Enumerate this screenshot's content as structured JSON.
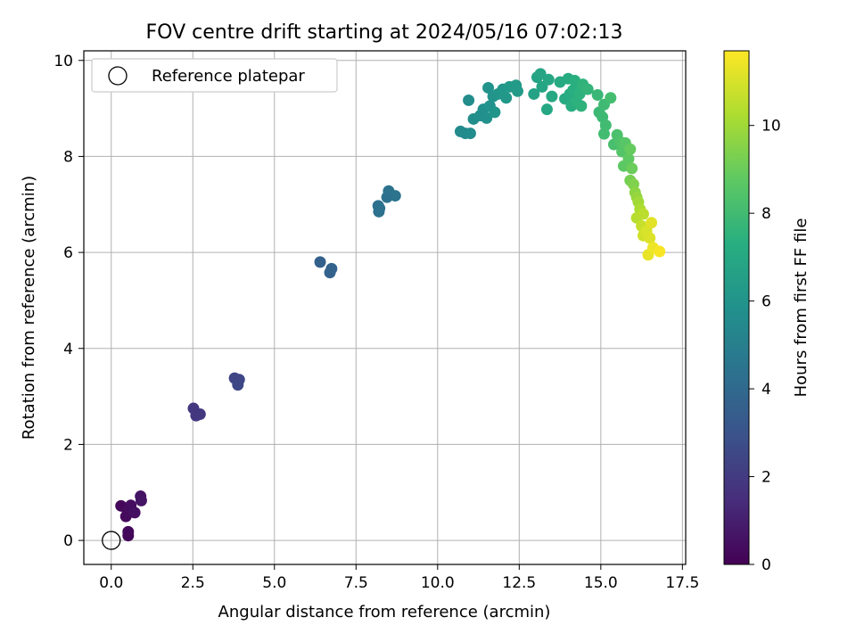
{
  "chart_data": {
    "type": "scatter",
    "title": "FOV centre drift starting at 2024/05/16 07:02:13",
    "xlabel": "Angular distance from reference (arcmin)",
    "ylabel": "Rotation from reference (arcmin)",
    "xlim": [
      -0.84,
      17.6
    ],
    "ylim": [
      -0.5,
      10.2
    ],
    "xticks": [
      0.0,
      2.5,
      5.0,
      7.5,
      10.0,
      12.5,
      15.0,
      17.5
    ],
    "xtick_labels": [
      "0.0",
      "2.5",
      "5.0",
      "7.5",
      "10.0",
      "12.5",
      "15.0",
      "17.5"
    ],
    "yticks": [
      0,
      2,
      4,
      6,
      8,
      10
    ],
    "ytick_labels": [
      "0",
      "2",
      "4",
      "6",
      "8",
      "10"
    ],
    "grid": true,
    "colormap": "viridis",
    "colorbar": {
      "label": "Hours from first FF file",
      "range": [
        0,
        11.7
      ],
      "ticks": [
        0,
        2,
        4,
        6,
        8,
        10
      ],
      "tick_labels": [
        "0",
        "2",
        "4",
        "6",
        "8",
        "10"
      ]
    },
    "legend": {
      "placement": "upper-left",
      "entries": [
        {
          "label": "Reference platepar",
          "marker": "open-circle"
        }
      ]
    },
    "reference_point": {
      "x": 0.0,
      "y": 0.0,
      "color": "#000000"
    },
    "points": [
      {
        "x": 0.3,
        "y": 0.72,
        "c": 0.2
      },
      {
        "x": 0.45,
        "y": 0.5,
        "c": 0.3
      },
      {
        "x": 0.5,
        "y": 0.62,
        "c": 0.35
      },
      {
        "x": 0.6,
        "y": 0.73,
        "c": 0.4
      },
      {
        "x": 0.72,
        "y": 0.58,
        "c": 0.5
      },
      {
        "x": 0.52,
        "y": 0.18,
        "c": 0.25
      },
      {
        "x": 0.52,
        "y": 0.1,
        "c": 0.22
      },
      {
        "x": 0.9,
        "y": 0.92,
        "c": 0.6
      },
      {
        "x": 0.92,
        "y": 0.83,
        "c": 0.65
      },
      {
        "x": 2.52,
        "y": 2.75,
        "c": 1.8
      },
      {
        "x": 2.6,
        "y": 2.6,
        "c": 1.85
      },
      {
        "x": 2.72,
        "y": 2.63,
        "c": 1.9
      },
      {
        "x": 3.78,
        "y": 3.38,
        "c": 2.4
      },
      {
        "x": 3.92,
        "y": 3.35,
        "c": 2.45
      },
      {
        "x": 3.88,
        "y": 3.24,
        "c": 2.5
      },
      {
        "x": 6.4,
        "y": 5.8,
        "c": 3.6
      },
      {
        "x": 6.7,
        "y": 5.58,
        "c": 3.65
      },
      {
        "x": 6.75,
        "y": 5.66,
        "c": 3.7
      },
      {
        "x": 8.18,
        "y": 6.97,
        "c": 4.3
      },
      {
        "x": 8.2,
        "y": 6.85,
        "c": 4.32
      },
      {
        "x": 8.22,
        "y": 6.92,
        "c": 4.34
      },
      {
        "x": 8.45,
        "y": 7.15,
        "c": 4.4
      },
      {
        "x": 8.5,
        "y": 7.28,
        "c": 4.42
      },
      {
        "x": 8.7,
        "y": 7.18,
        "c": 4.45
      },
      {
        "x": 10.7,
        "y": 8.52,
        "c": 5.5
      },
      {
        "x": 10.85,
        "y": 8.48,
        "c": 5.55
      },
      {
        "x": 11.0,
        "y": 8.48,
        "c": 5.6
      },
      {
        "x": 10.95,
        "y": 9.17,
        "c": 5.65
      },
      {
        "x": 11.1,
        "y": 8.78,
        "c": 5.7
      },
      {
        "x": 11.3,
        "y": 8.85,
        "c": 5.75
      },
      {
        "x": 11.4,
        "y": 8.98,
        "c": 5.8
      },
      {
        "x": 11.5,
        "y": 8.8,
        "c": 5.85
      },
      {
        "x": 11.6,
        "y": 9.05,
        "c": 5.9
      },
      {
        "x": 11.55,
        "y": 9.43,
        "c": 5.95
      },
      {
        "x": 11.7,
        "y": 9.25,
        "c": 6.0
      },
      {
        "x": 11.75,
        "y": 8.92,
        "c": 6.05
      },
      {
        "x": 11.85,
        "y": 9.3,
        "c": 6.1
      },
      {
        "x": 12.0,
        "y": 9.4,
        "c": 6.15
      },
      {
        "x": 12.1,
        "y": 9.22,
        "c": 6.2
      },
      {
        "x": 12.2,
        "y": 9.45,
        "c": 6.25
      },
      {
        "x": 12.4,
        "y": 9.48,
        "c": 6.3
      },
      {
        "x": 12.45,
        "y": 9.36,
        "c": 6.35
      },
      {
        "x": 12.95,
        "y": 9.3,
        "c": 6.7
      },
      {
        "x": 13.05,
        "y": 9.65,
        "c": 6.75
      },
      {
        "x": 13.15,
        "y": 9.72,
        "c": 6.8
      },
      {
        "x": 13.2,
        "y": 9.45,
        "c": 6.85
      },
      {
        "x": 13.4,
        "y": 9.6,
        "c": 6.9
      },
      {
        "x": 13.35,
        "y": 8.98,
        "c": 6.95
      },
      {
        "x": 13.5,
        "y": 9.25,
        "c": 7.0
      },
      {
        "x": 13.75,
        "y": 9.55,
        "c": 7.05
      },
      {
        "x": 13.9,
        "y": 9.2,
        "c": 7.1
      },
      {
        "x": 14.0,
        "y": 9.62,
        "c": 7.15
      },
      {
        "x": 14.05,
        "y": 9.3,
        "c": 7.2
      },
      {
        "x": 14.1,
        "y": 9.05,
        "c": 7.25
      },
      {
        "x": 14.15,
        "y": 9.38,
        "c": 7.3
      },
      {
        "x": 14.2,
        "y": 9.58,
        "c": 7.35
      },
      {
        "x": 14.25,
        "y": 9.15,
        "c": 7.4
      },
      {
        "x": 14.35,
        "y": 9.3,
        "c": 7.45
      },
      {
        "x": 14.4,
        "y": 9.05,
        "c": 7.5
      },
      {
        "x": 14.45,
        "y": 9.5,
        "c": 7.55
      },
      {
        "x": 14.6,
        "y": 9.4,
        "c": 7.65
      },
      {
        "x": 14.9,
        "y": 9.28,
        "c": 7.8
      },
      {
        "x": 14.95,
        "y": 8.92,
        "c": 7.85
      },
      {
        "x": 15.05,
        "y": 8.82,
        "c": 7.9
      },
      {
        "x": 15.1,
        "y": 9.08,
        "c": 7.95
      },
      {
        "x": 15.15,
        "y": 8.65,
        "c": 8.0
      },
      {
        "x": 15.1,
        "y": 8.47,
        "c": 8.05
      },
      {
        "x": 15.3,
        "y": 9.22,
        "c": 8.1
      },
      {
        "x": 15.4,
        "y": 8.25,
        "c": 8.2
      },
      {
        "x": 15.5,
        "y": 8.45,
        "c": 8.3
      },
      {
        "x": 15.6,
        "y": 8.3,
        "c": 8.4
      },
      {
        "x": 15.65,
        "y": 8.1,
        "c": 8.5
      },
      {
        "x": 15.75,
        "y": 8.28,
        "c": 8.6
      },
      {
        "x": 15.7,
        "y": 7.8,
        "c": 8.7
      },
      {
        "x": 15.85,
        "y": 7.95,
        "c": 8.8
      },
      {
        "x": 15.9,
        "y": 8.15,
        "c": 8.9
      },
      {
        "x": 15.95,
        "y": 7.75,
        "c": 9.0
      },
      {
        "x": 15.9,
        "y": 7.5,
        "c": 9.2
      },
      {
        "x": 16.0,
        "y": 7.42,
        "c": 9.4
      },
      {
        "x": 16.05,
        "y": 7.25,
        "c": 9.6
      },
      {
        "x": 16.1,
        "y": 7.15,
        "c": 9.8
      },
      {
        "x": 16.15,
        "y": 7.05,
        "c": 10.0
      },
      {
        "x": 16.2,
        "y": 6.9,
        "c": 10.2
      },
      {
        "x": 16.1,
        "y": 6.72,
        "c": 10.4
      },
      {
        "x": 16.3,
        "y": 6.8,
        "c": 10.5
      },
      {
        "x": 16.25,
        "y": 6.55,
        "c": 10.7
      },
      {
        "x": 16.3,
        "y": 6.35,
        "c": 10.9
      },
      {
        "x": 16.4,
        "y": 6.45,
        "c": 11.0
      },
      {
        "x": 16.5,
        "y": 6.3,
        "c": 11.1
      },
      {
        "x": 16.55,
        "y": 6.62,
        "c": 11.2
      },
      {
        "x": 16.45,
        "y": 5.95,
        "c": 11.3
      },
      {
        "x": 16.6,
        "y": 6.1,
        "c": 11.4
      },
      {
        "x": 16.8,
        "y": 6.02,
        "c": 11.6
      }
    ]
  }
}
